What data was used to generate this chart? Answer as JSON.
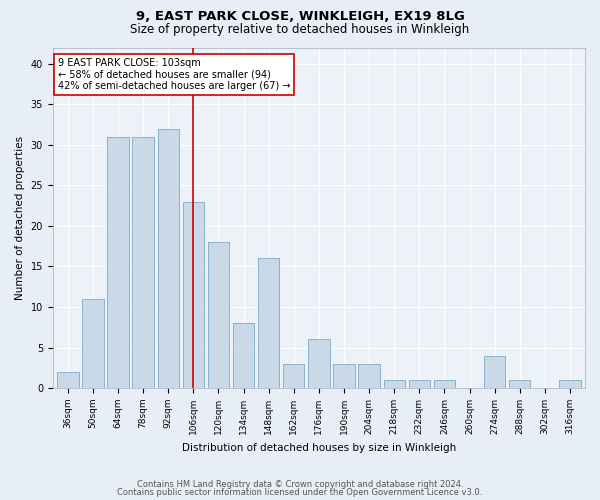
{
  "title1": "9, EAST PARK CLOSE, WINKLEIGH, EX19 8LG",
  "title2": "Size of property relative to detached houses in Winkleigh",
  "xlabel": "Distribution of detached houses by size in Winkleigh",
  "ylabel": "Number of detached properties",
  "categories": [
    "36sqm",
    "50sqm",
    "64sqm",
    "78sqm",
    "92sqm",
    "106sqm",
    "120sqm",
    "134sqm",
    "148sqm",
    "162sqm",
    "176sqm",
    "190sqm",
    "204sqm",
    "218sqm",
    "232sqm",
    "246sqm",
    "260sqm",
    "274sqm",
    "288sqm",
    "302sqm",
    "316sqm"
  ],
  "values": [
    2,
    11,
    31,
    31,
    32,
    23,
    18,
    8,
    16,
    3,
    6,
    3,
    3,
    1,
    1,
    1,
    0,
    4,
    1,
    0,
    1
  ],
  "bar_color": "#c9d9e8",
  "bar_edge_color": "#8ab4cc",
  "vline_x_idx": 5,
  "vline_color": "#cc0000",
  "annotation_text": "9 EAST PARK CLOSE: 103sqm\n← 58% of detached houses are smaller (94)\n42% of semi-detached houses are larger (67) →",
  "annotation_box_color": "#ffffff",
  "annotation_box_edge": "#cc0000",
  "ylim": [
    0,
    42
  ],
  "yticks": [
    0,
    5,
    10,
    15,
    20,
    25,
    30,
    35,
    40
  ],
  "footer1": "Contains HM Land Registry data © Crown copyright and database right 2024.",
  "footer2": "Contains public sector information licensed under the Open Government Licence v3.0.",
  "bg_color": "#e8eef5",
  "plot_bg_color": "#edf2f8",
  "grid_color": "#ffffff",
  "title1_fontsize": 9.5,
  "title2_fontsize": 8.5,
  "tick_fontsize": 6.5,
  "ylabel_fontsize": 7.5,
  "xlabel_fontsize": 7.5,
  "annot_fontsize": 7,
  "footer_fontsize": 6
}
